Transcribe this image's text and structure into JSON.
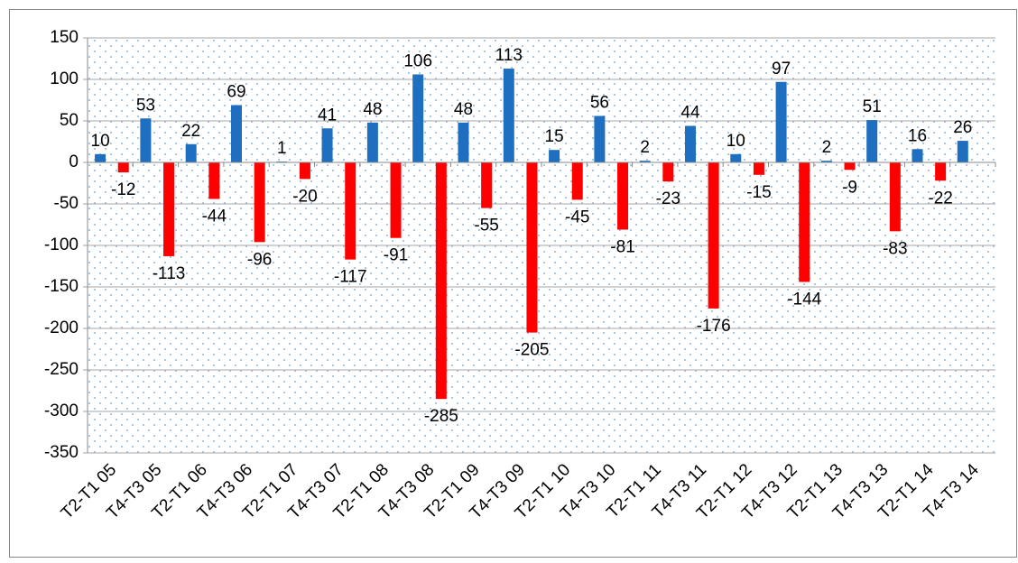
{
  "chart_data": {
    "type": "bar",
    "categories": [
      "T2-T1 05",
      "T4-T3 05",
      "T2-T1 06",
      "T4-T3 06",
      "T2-T1 07",
      "T4-T3 07",
      "T2-T1 08",
      "T4-T3 08",
      "T2-T1 09",
      "T4-T3 09",
      "T2-T1 10",
      "T4-T3 10",
      "T2-T1 11",
      "T4-T3 11",
      "T2-T1 12",
      "T4-T3 12",
      "T2-T1 13",
      "T4-T3 13",
      "T2-T1 14",
      "T4-T3 14"
    ],
    "series": [
      {
        "color": "#1f6fc0",
        "values": [
          10,
          53,
          22,
          69,
          1,
          41,
          48,
          106,
          48,
          113,
          15,
          56,
          2,
          44,
          10,
          97,
          2,
          51,
          16,
          26
        ]
      },
      {
        "color": "#ff0000",
        "values": [
          -12,
          -113,
          -44,
          -96,
          -20,
          -117,
          -91,
          -285,
          -55,
          -205,
          -45,
          -81,
          -23,
          -176,
          -15,
          -144,
          -9,
          -83,
          -22,
          null
        ]
      }
    ],
    "ylim": [
      -350,
      150
    ],
    "yticks": [
      -350,
      -300,
      -250,
      -200,
      -150,
      -100,
      -50,
      0,
      50,
      100,
      150
    ],
    "grid": true
  }
}
